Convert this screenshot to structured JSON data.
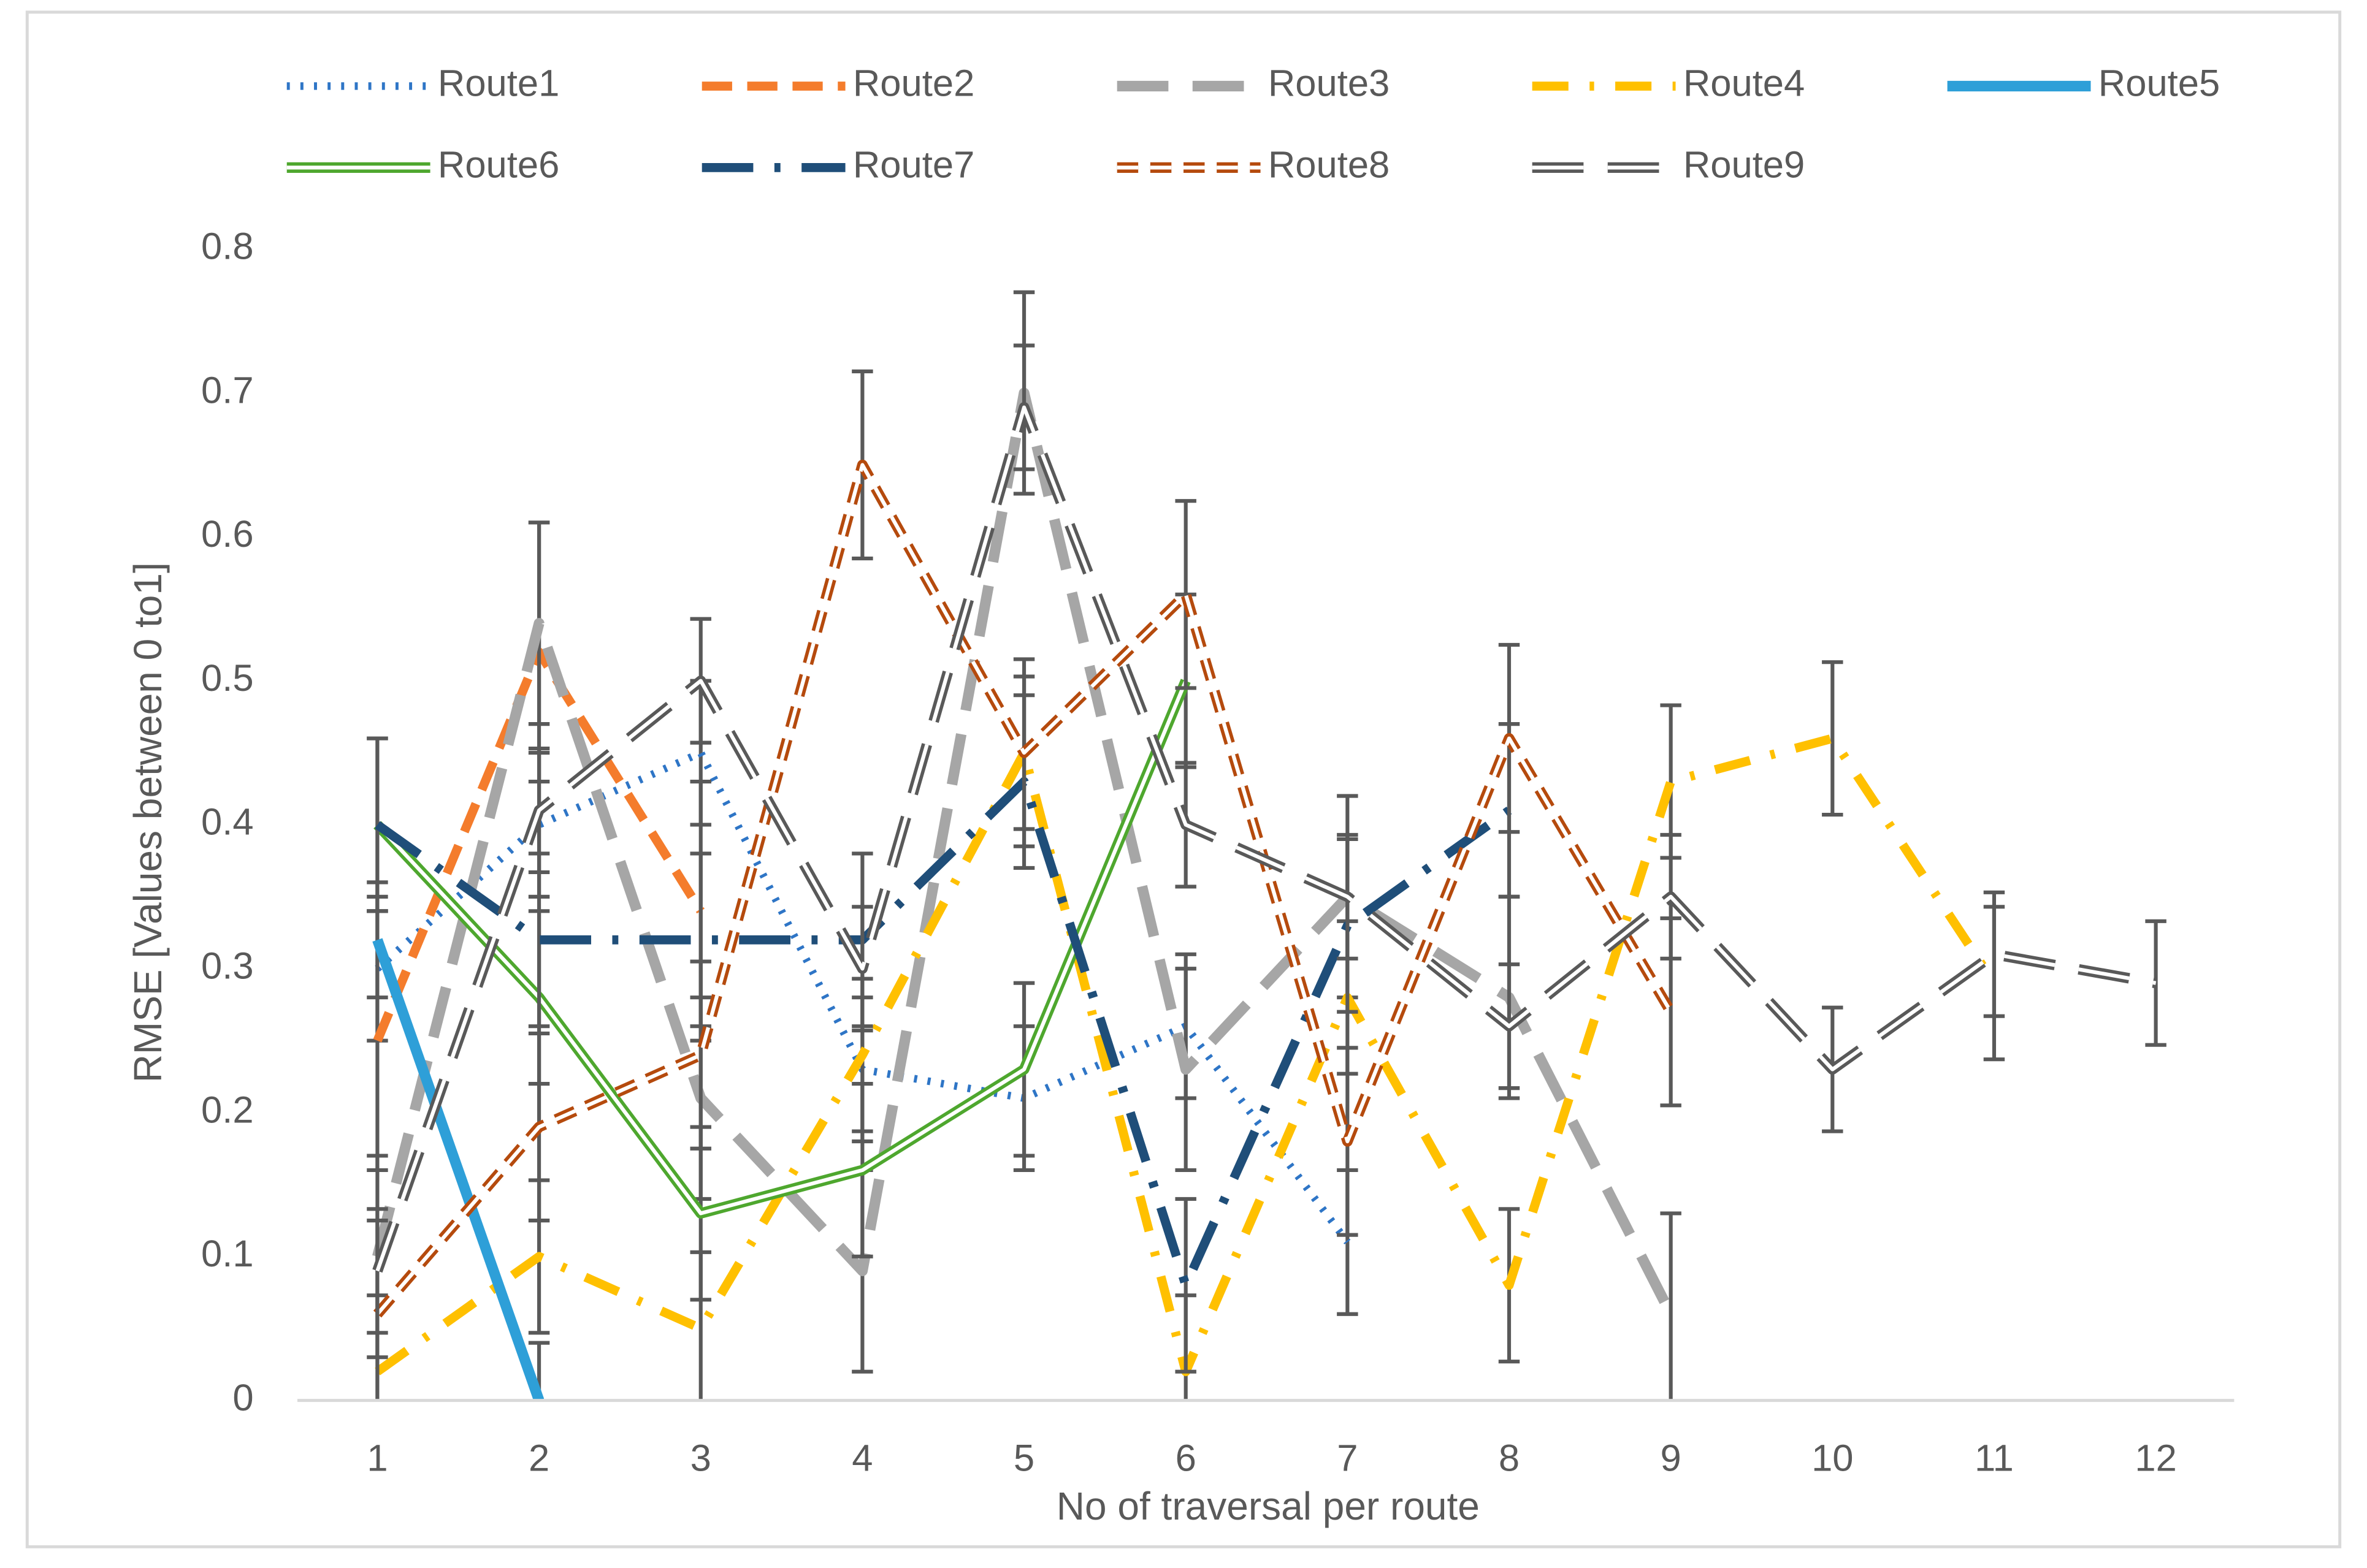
{
  "chart_data": {
    "type": "line",
    "x_label": "No of traversal per route",
    "y_label": "RMSE [Values between 0 to1]",
    "categories": [
      1,
      2,
      3,
      4,
      5,
      6,
      7,
      8,
      9,
      10,
      11,
      12
    ],
    "ylim": [
      0,
      0.8
    ],
    "yticks": [
      0,
      0.1,
      0.2,
      0.3,
      0.4,
      0.5,
      0.6,
      0.7,
      0.8
    ],
    "legend": "top",
    "error_color": "#595959",
    "series": [
      {
        "name": "Route1",
        "color": "#2e75c6",
        "dash": "2 7",
        "width": 5,
        "double": false,
        "error": 0.05,
        "values": [
          0.3,
          0.4,
          0.45,
          0.23,
          0.21,
          0.26,
          0.11,
          null,
          null,
          null,
          null,
          null
        ]
      },
      {
        "name": "Route2",
        "color": "#f47c2c",
        "dash": "20 10",
        "width": 6,
        "double": false,
        "error": 0.09,
        "values": [
          0.25,
          0.52,
          0.34,
          null,
          null,
          null,
          null,
          null,
          null,
          null,
          null,
          null
        ]
      },
      {
        "name": "Route3",
        "color": "#a6a6a6",
        "dash": "34 16",
        "width": 7,
        "double": false,
        "error": 0.07,
        "values": [
          0.1,
          0.54,
          0.21,
          0.09,
          0.7,
          0.23,
          0.35,
          0.28,
          0.06,
          null,
          null,
          null
        ]
      },
      {
        "name": "Route4",
        "color": "#ffc000",
        "dash": "24 14 3 14",
        "width": 6,
        "double": false,
        "error": 0.053,
        "values": [
          0.02,
          0.1,
          0.05,
          0.24,
          0.45,
          0.02,
          0.28,
          0.08,
          0.43,
          0.46,
          0.29,
          null
        ]
      },
      {
        "name": "Route5",
        "color": "#2e9fd8",
        "dash": "none",
        "width": 7,
        "double": false,
        "error": 0.04,
        "values": [
          0.32,
          0.0,
          null,
          null,
          null,
          null,
          null,
          null,
          null,
          null,
          null,
          null
        ]
      },
      {
        "name": "Route6",
        "color": "#4ea72e",
        "dash": "none",
        "width": 6,
        "double": true,
        "error": 0.06,
        "values": [
          0.4,
          0.28,
          0.13,
          0.16,
          0.23,
          0.5,
          null,
          null,
          null,
          null,
          null,
          null
        ]
      },
      {
        "name": "Route7",
        "color": "#1f4e79",
        "dash": "34 14 4 14",
        "width": 6,
        "double": false,
        "error": 0.06,
        "values": [
          0.4,
          0.32,
          0.32,
          0.32,
          0.43,
          0.08,
          0.33,
          0.41,
          null,
          null,
          null,
          null
        ]
      },
      {
        "name": "Route8",
        "color": "#b54a0d",
        "dash": "14 8",
        "width": 6,
        "double": true,
        "error": 0.065,
        "values": [
          0.06,
          0.19,
          0.24,
          0.65,
          0.45,
          0.56,
          0.18,
          0.46,
          0.27,
          null,
          null,
          null
        ]
      },
      {
        "name": "Route9",
        "color": "#595959",
        "dash": "34 16",
        "width": 6,
        "double": true,
        "error": 0.043,
        "values": [
          0.09,
          0.41,
          0.5,
          0.3,
          0.69,
          0.4,
          0.35,
          0.26,
          0.35,
          0.23,
          0.31,
          0.29
        ]
      }
    ]
  }
}
